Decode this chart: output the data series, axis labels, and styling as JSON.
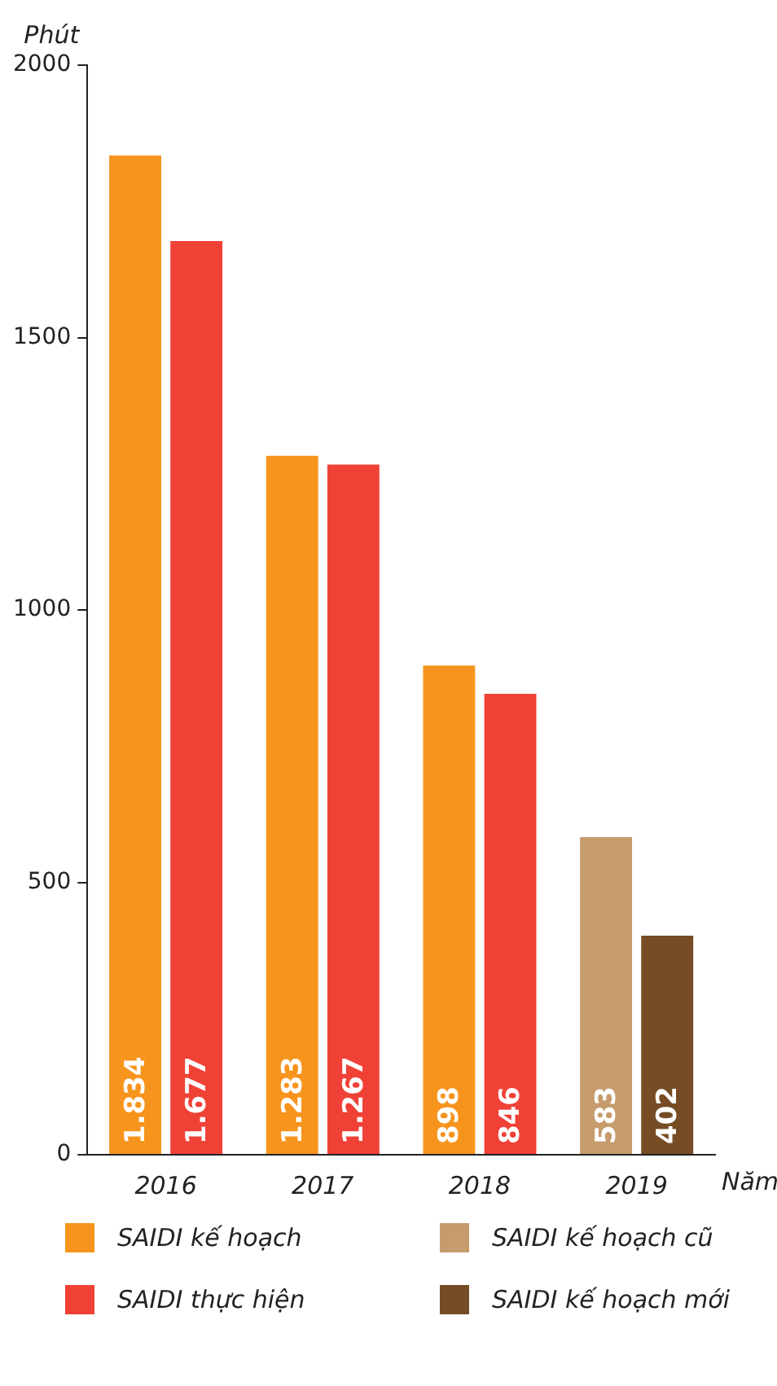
{
  "chart_data": {
    "type": "bar",
    "ylabel": "Phút",
    "xlabel": "Năm",
    "categories": [
      "2016",
      "2017",
      "2018",
      "2019"
    ],
    "series": [
      {
        "name": "SAIDI kế hoạch",
        "color": "#f7941d",
        "values": [
          1834,
          1283,
          898,
          null
        ],
        "value_labels": [
          "1.834",
          "1.283",
          "898",
          null
        ]
      },
      {
        "name": "SAIDI thực hiện",
        "color": "#ef4136",
        "values": [
          1677,
          1267,
          846,
          null
        ],
        "value_labels": [
          "1.677",
          "1.267",
          "846",
          null
        ]
      },
      {
        "name": "SAIDI kế hoạch cũ",
        "color": "#c69c6d",
        "values": [
          null,
          null,
          null,
          583
        ],
        "value_labels": [
          null,
          null,
          null,
          "583"
        ]
      },
      {
        "name": "SAIDI kế hoạch mới",
        "color": "#754c24",
        "values": [
          null,
          null,
          null,
          402
        ],
        "value_labels": [
          null,
          null,
          null,
          "402"
        ]
      }
    ],
    "ylim": [
      0,
      2000
    ],
    "yticks": [
      0,
      500,
      1000,
      1500,
      2000
    ],
    "grid": false,
    "legend": "bottom"
  }
}
